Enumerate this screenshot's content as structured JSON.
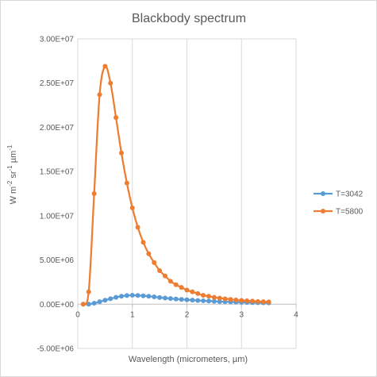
{
  "chart_data": {
    "type": "line",
    "title": "Blackbody spectrum",
    "xlabel": "Wavelength (micrometers, µm)",
    "ylabel_parts": [
      "W m",
      "-2",
      " sr",
      "-1",
      " µm",
      "-1"
    ],
    "xlim": [
      0,
      4
    ],
    "ylim": [
      -5000000,
      30000000
    ],
    "x_ticks": [
      0,
      1,
      2,
      3,
      4
    ],
    "x_tick_labels": [
      "0",
      "1",
      "2",
      "3",
      "4"
    ],
    "y_ticks": [
      -5000000,
      0,
      5000000,
      10000000,
      15000000,
      20000000,
      25000000,
      30000000
    ],
    "y_tick_labels": [
      "-5.00E+06",
      "0.00E+00",
      "5.00E+06",
      "1.00E+07",
      "1.50E+07",
      "2.00E+07",
      "2.50E+07",
      "3.00E+07"
    ],
    "grid": "vertical",
    "legend_position": "right",
    "x": [
      0.1,
      0.2,
      0.3,
      0.4,
      0.5,
      0.6,
      0.7,
      0.8,
      0.9,
      1.0,
      1.1,
      1.2,
      1.3,
      1.4,
      1.5,
      1.6,
      1.7,
      1.8,
      1.9,
      2.0,
      2.1,
      2.2,
      2.3,
      2.4,
      2.5,
      2.6,
      2.7,
      2.8,
      2.9,
      3.0,
      3.1,
      3.2,
      3.3,
      3.4,
      3.5
    ],
    "series": [
      {
        "name": "T=3042",
        "color": "#5b9bd5",
        "values": [
          0,
          5000,
          110000,
          280000,
          450000,
          620000,
          780000,
          900000,
          980000,
          1010000,
          990000,
          950000,
          900000,
          830000,
          760000,
          700000,
          640000,
          590000,
          540000,
          500000,
          460000,
          420000,
          390000,
          360000,
          330000,
          300000,
          280000,
          260000,
          240000,
          220000,
          200000,
          185000,
          170000,
          160000,
          150000
        ]
      },
      {
        "name": "T=5800",
        "color": "#ed7d31",
        "values": [
          0,
          1400000,
          12500000,
          23700000,
          26900000,
          25000000,
          21100000,
          17100000,
          13700000,
          10900000,
          8700000,
          7000000,
          5700000,
          4700000,
          3800000,
          3200000,
          2600000,
          2200000,
          1900000,
          1600000,
          1400000,
          1200000,
          1000000,
          900000,
          780000,
          690000,
          610000,
          540000,
          480000,
          430000,
          380000,
          350000,
          310000,
          280000,
          260000
        ]
      }
    ]
  }
}
